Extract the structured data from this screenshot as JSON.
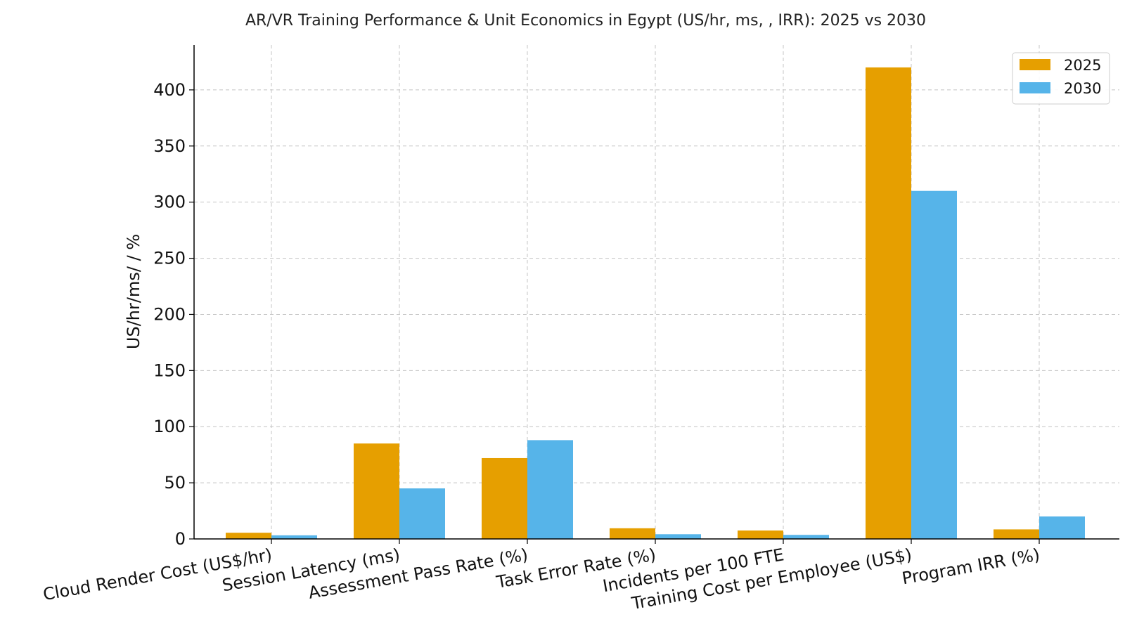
{
  "chart_data": {
    "type": "bar",
    "title": "AR/VR Training Performance & Unit Economics in Egypt (US/hr, ms, , IRR): 2025 vs 2030",
    "ylabel": "US/hr/ms/ / %",
    "xlabel": "",
    "ylim": [
      0,
      440
    ],
    "yticks": [
      0,
      50,
      100,
      150,
      200,
      250,
      300,
      350,
      400
    ],
    "grid": true,
    "legend_position": "top-right",
    "categories": [
      "Cloud Render Cost (US$/hr)",
      "Session Latency (ms)",
      "Assessment Pass Rate (%)",
      "Task Error Rate (%)",
      "Incidents per 100 FTE",
      "Training Cost per Employee (US$)",
      "Program IRR (%)"
    ],
    "series": [
      {
        "name": "2025",
        "color": "#E69F00",
        "values": [
          5.5,
          85,
          72,
          9.5,
          7.5,
          420,
          8.5
        ]
      },
      {
        "name": "2030",
        "color": "#56B4E9",
        "values": [
          3.2,
          45,
          88,
          4.2,
          3.6,
          310,
          20
        ]
      }
    ]
  }
}
